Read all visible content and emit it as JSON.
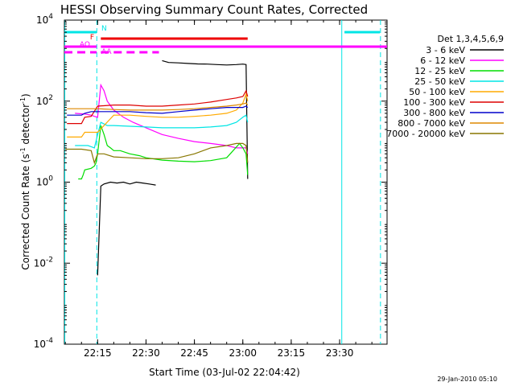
{
  "chart_data": {
    "type": "line",
    "title": "HESSI Observing Summary Count Rates, Corrected",
    "xlabel": "Start Time (03-Jul-02 22:04:42)",
    "ylabel": "Corrected Count Rate (s",
    "ylabel_sup": "-1",
    "ylabel_tail": " detector",
    "ylabel_tail_sup": "-1",
    "ylabel_close": ")",
    "y_scale": "log",
    "ylim": [
      0.0001,
      10000
    ],
    "y_ticks": [
      {
        "value": 0.0001,
        "base": "10",
        "exp": "-4"
      },
      {
        "value": 0.01,
        "base": "10",
        "exp": "-2"
      },
      {
        "value": 1,
        "base": "10",
        "exp": "0"
      },
      {
        "value": 100,
        "base": "10",
        "exp": "2"
      },
      {
        "value": 10000,
        "base": "10",
        "exp": "4"
      }
    ],
    "xlim": [
      "22:04:42",
      "23:44:42"
    ],
    "x_ticks": [
      "22:15",
      "22:30",
      "22:45",
      "23:00",
      "23:15",
      "23:30"
    ],
    "grid": false,
    "legend_position": "right",
    "legend_title": "Det 1,3,4,5,6,9",
    "date_stamp": "29-Jan-2010 05:10",
    "series": [
      {
        "name": "3 - 6 keV",
        "color": "#000000",
        "x": [
          "22:15:00",
          "22:16:00",
          "22:17:00",
          "22:19:00",
          "22:21:00",
          "22:23:00",
          "22:25:00",
          "22:27:00",
          "22:29:00",
          "22:31:00",
          "22:33:00",
          "22:34:00",
          "22:35:00",
          "22:37:00",
          "22:40:00",
          "22:43:00",
          "22:46:00",
          "22:49:00",
          "22:52:00",
          "22:55:00",
          "22:58:00",
          "23:00:00",
          "23:01:00",
          "23:01:30"
        ],
        "y": [
          0.005,
          0.8,
          0.9,
          1.0,
          0.95,
          1.0,
          0.9,
          1.0,
          0.95,
          0.9,
          0.85,
          null,
          1000,
          900,
          880,
          850,
          830,
          820,
          800,
          780,
          800,
          820,
          800,
          1.2
        ]
      },
      {
        "name": "6 - 12 keV",
        "color": "#ff00ff",
        "x": [
          "22:08:00",
          "22:11:00",
          "22:13:00",
          "22:14:00",
          "22:15:00",
          "22:16:00",
          "22:17:00",
          "22:18:00",
          "22:20:00",
          "22:23:00",
          "22:26:00",
          "22:30:00",
          "22:35:00",
          "22:40:00",
          "22:45:00",
          "22:50:00",
          "22:55:00",
          "22:58:00",
          "23:00:00",
          "23:01:00",
          "23:01:30"
        ],
        "y": [
          50,
          48,
          45,
          42,
          40,
          250,
          180,
          100,
          60,
          40,
          30,
          22,
          15,
          12,
          10,
          9,
          8,
          7,
          7,
          7,
          5
        ]
      },
      {
        "name": "12 - 25 keV",
        "color": "#00dd00",
        "x": [
          "22:09:00",
          "22:10:00",
          "22:10:30",
          "22:11:00",
          "22:13:00",
          "22:14:00",
          "22:14:30",
          "22:15:00",
          "22:16:00",
          "22:17:00",
          "22:18:00",
          "22:19:00",
          "22:20:00",
          "22:22:00",
          "22:25:00",
          "22:28:00",
          "22:30:00",
          "22:35:00",
          "22:40:00",
          "22:45:00",
          "22:50:00",
          "22:55:00",
          "22:57:00",
          "22:59:00",
          "23:00:00",
          "23:01:00",
          "23:01:30"
        ],
        "y": [
          1.2,
          1.2,
          1.5,
          2.0,
          2.2,
          2.5,
          3.0,
          5.0,
          25,
          15,
          8,
          7,
          6,
          6,
          5,
          4.5,
          4,
          3.5,
          3.3,
          3.2,
          3.4,
          4,
          6,
          9,
          7,
          5,
          1.5
        ]
      },
      {
        "name": "25 - 50 keV",
        "color": "#00e5e5",
        "x": [
          "22:08:00",
          "22:10:00",
          "22:12:00",
          "22:13:00",
          "22:14:00",
          "22:15:00",
          "22:16:00",
          "22:18:00",
          "22:20:00",
          "22:25:00",
          "22:30:00",
          "22:35:00",
          "22:40:00",
          "22:45:00",
          "22:50:00",
          "22:55:00",
          "22:58:00",
          "23:00:00",
          "23:01:00",
          "23:01:30"
        ],
        "y": [
          8,
          8,
          8,
          7.5,
          7,
          15,
          30,
          25,
          25,
          24,
          23,
          22,
          22,
          22,
          23,
          25,
          30,
          40,
          45,
          30
        ]
      },
      {
        "name": "50 - 100 keV",
        "color": "#ffaa00",
        "x": [
          "22:05:30",
          "22:10:00",
          "22:11:00",
          "22:13:00",
          "22:15:00",
          "22:20:00",
          "22:25:00",
          "22:30:00",
          "22:35:00",
          "22:40:00",
          "22:45:00",
          "22:50:00",
          "22:55:00",
          "22:58:00",
          "23:00:00",
          "23:01:00",
          "23:01:30"
        ],
        "y": [
          13,
          13,
          17,
          17,
          17,
          45,
          45,
          42,
          40,
          40,
          42,
          45,
          50,
          60,
          90,
          150,
          100
        ]
      },
      {
        "name": "100 - 300 keV",
        "color": "#dd0000",
        "x": [
          "22:05:30",
          "22:10:00",
          "22:11:00",
          "22:13:00",
          "22:15:00",
          "22:20:00",
          "22:25:00",
          "22:30:00",
          "22:35:00",
          "22:40:00",
          "22:45:00",
          "22:50:00",
          "22:55:00",
          "22:58:00",
          "23:00:00",
          "23:01:00",
          "23:01:30"
        ],
        "y": [
          28,
          28,
          40,
          42,
          75,
          80,
          80,
          75,
          75,
          80,
          85,
          95,
          110,
          120,
          130,
          180,
          130
        ]
      },
      {
        "name": "300 - 800 keV",
        "color": "#0000cc",
        "x": [
          "22:05:30",
          "22:10:00",
          "22:11:00",
          "22:13:00",
          "22:15:00",
          "22:20:00",
          "22:25:00",
          "22:30:00",
          "22:35:00",
          "22:40:00",
          "22:45:00",
          "22:50:00",
          "22:55:00",
          "22:58:00",
          "23:00:00",
          "23:01:00",
          "23:01:30"
        ],
        "y": [
          45,
          45,
          50,
          55,
          55,
          55,
          55,
          52,
          50,
          55,
          60,
          65,
          70,
          70,
          70,
          75,
          70
        ]
      },
      {
        "name": "800 - 7000 keV",
        "color": "#dd8800",
        "x": [
          "22:05:30",
          "22:10:00",
          "22:13:00",
          "22:15:00",
          "22:20:00",
          "22:25:00",
          "22:30:00",
          "22:35:00",
          "22:40:00",
          "22:45:00",
          "22:50:00",
          "22:55:00",
          "22:58:00",
          "23:00:00",
          "23:01:00",
          "23:01:30"
        ],
        "y": [
          65,
          65,
          65,
          65,
          62,
          60,
          60,
          60,
          62,
          65,
          70,
          75,
          80,
          85,
          90,
          80
        ]
      },
      {
        "name": "7000 - 20000 keV",
        "color": "#887700",
        "x": [
          "22:05:00",
          "22:10:00",
          "22:13:00",
          "22:14:00",
          "22:15:00",
          "22:17:00",
          "22:20:00",
          "22:25:00",
          "22:30:00",
          "22:35:00",
          "22:40:00",
          "22:45:00",
          "22:50:00",
          "22:55:00",
          "22:58:00",
          "23:00:00",
          "23:01:00",
          "23:01:30"
        ],
        "y": [
          6.5,
          6.5,
          6,
          3,
          5,
          5,
          4.2,
          4,
          3.8,
          3.8,
          4,
          5,
          7,
          8,
          9,
          9,
          8,
          3
        ]
      }
    ],
    "annotations": [
      {
        "label": "N",
        "color": "#00e5e5",
        "segments": [
          [
            "22:04:42",
            "22:14:42"
          ],
          [
            "23:31:30",
            "23:42:30"
          ]
        ]
      },
      {
        "label": "F",
        "color": "#ee0000",
        "segments": [
          [
            "22:16:00",
            "23:01:30"
          ]
        ]
      },
      {
        "label": "AO",
        "color": "#ff00ff",
        "segments": [
          [
            "22:04:42",
            "22:14:42"
          ],
          [
            "22:16:00",
            "23:44:42"
          ]
        ]
      },
      {
        "label": "AA",
        "color": "#ff00ff",
        "segments": [
          [
            "22:04:42",
            "22:14:42"
          ],
          [
            "22:16:00",
            "22:34:00"
          ]
        ]
      }
    ],
    "vertical_lines": [
      {
        "time": "22:14:45",
        "style": "dashed",
        "color": "#00e5e5"
      },
      {
        "time": "23:30:40",
        "style": "solid",
        "color": "#00e5e5"
      },
      {
        "time": "23:42:40",
        "style": "dashed",
        "color": "#00e5e5"
      },
      {
        "time": "22:04:50",
        "style": "solid",
        "color": "#00e5e5"
      }
    ]
  }
}
